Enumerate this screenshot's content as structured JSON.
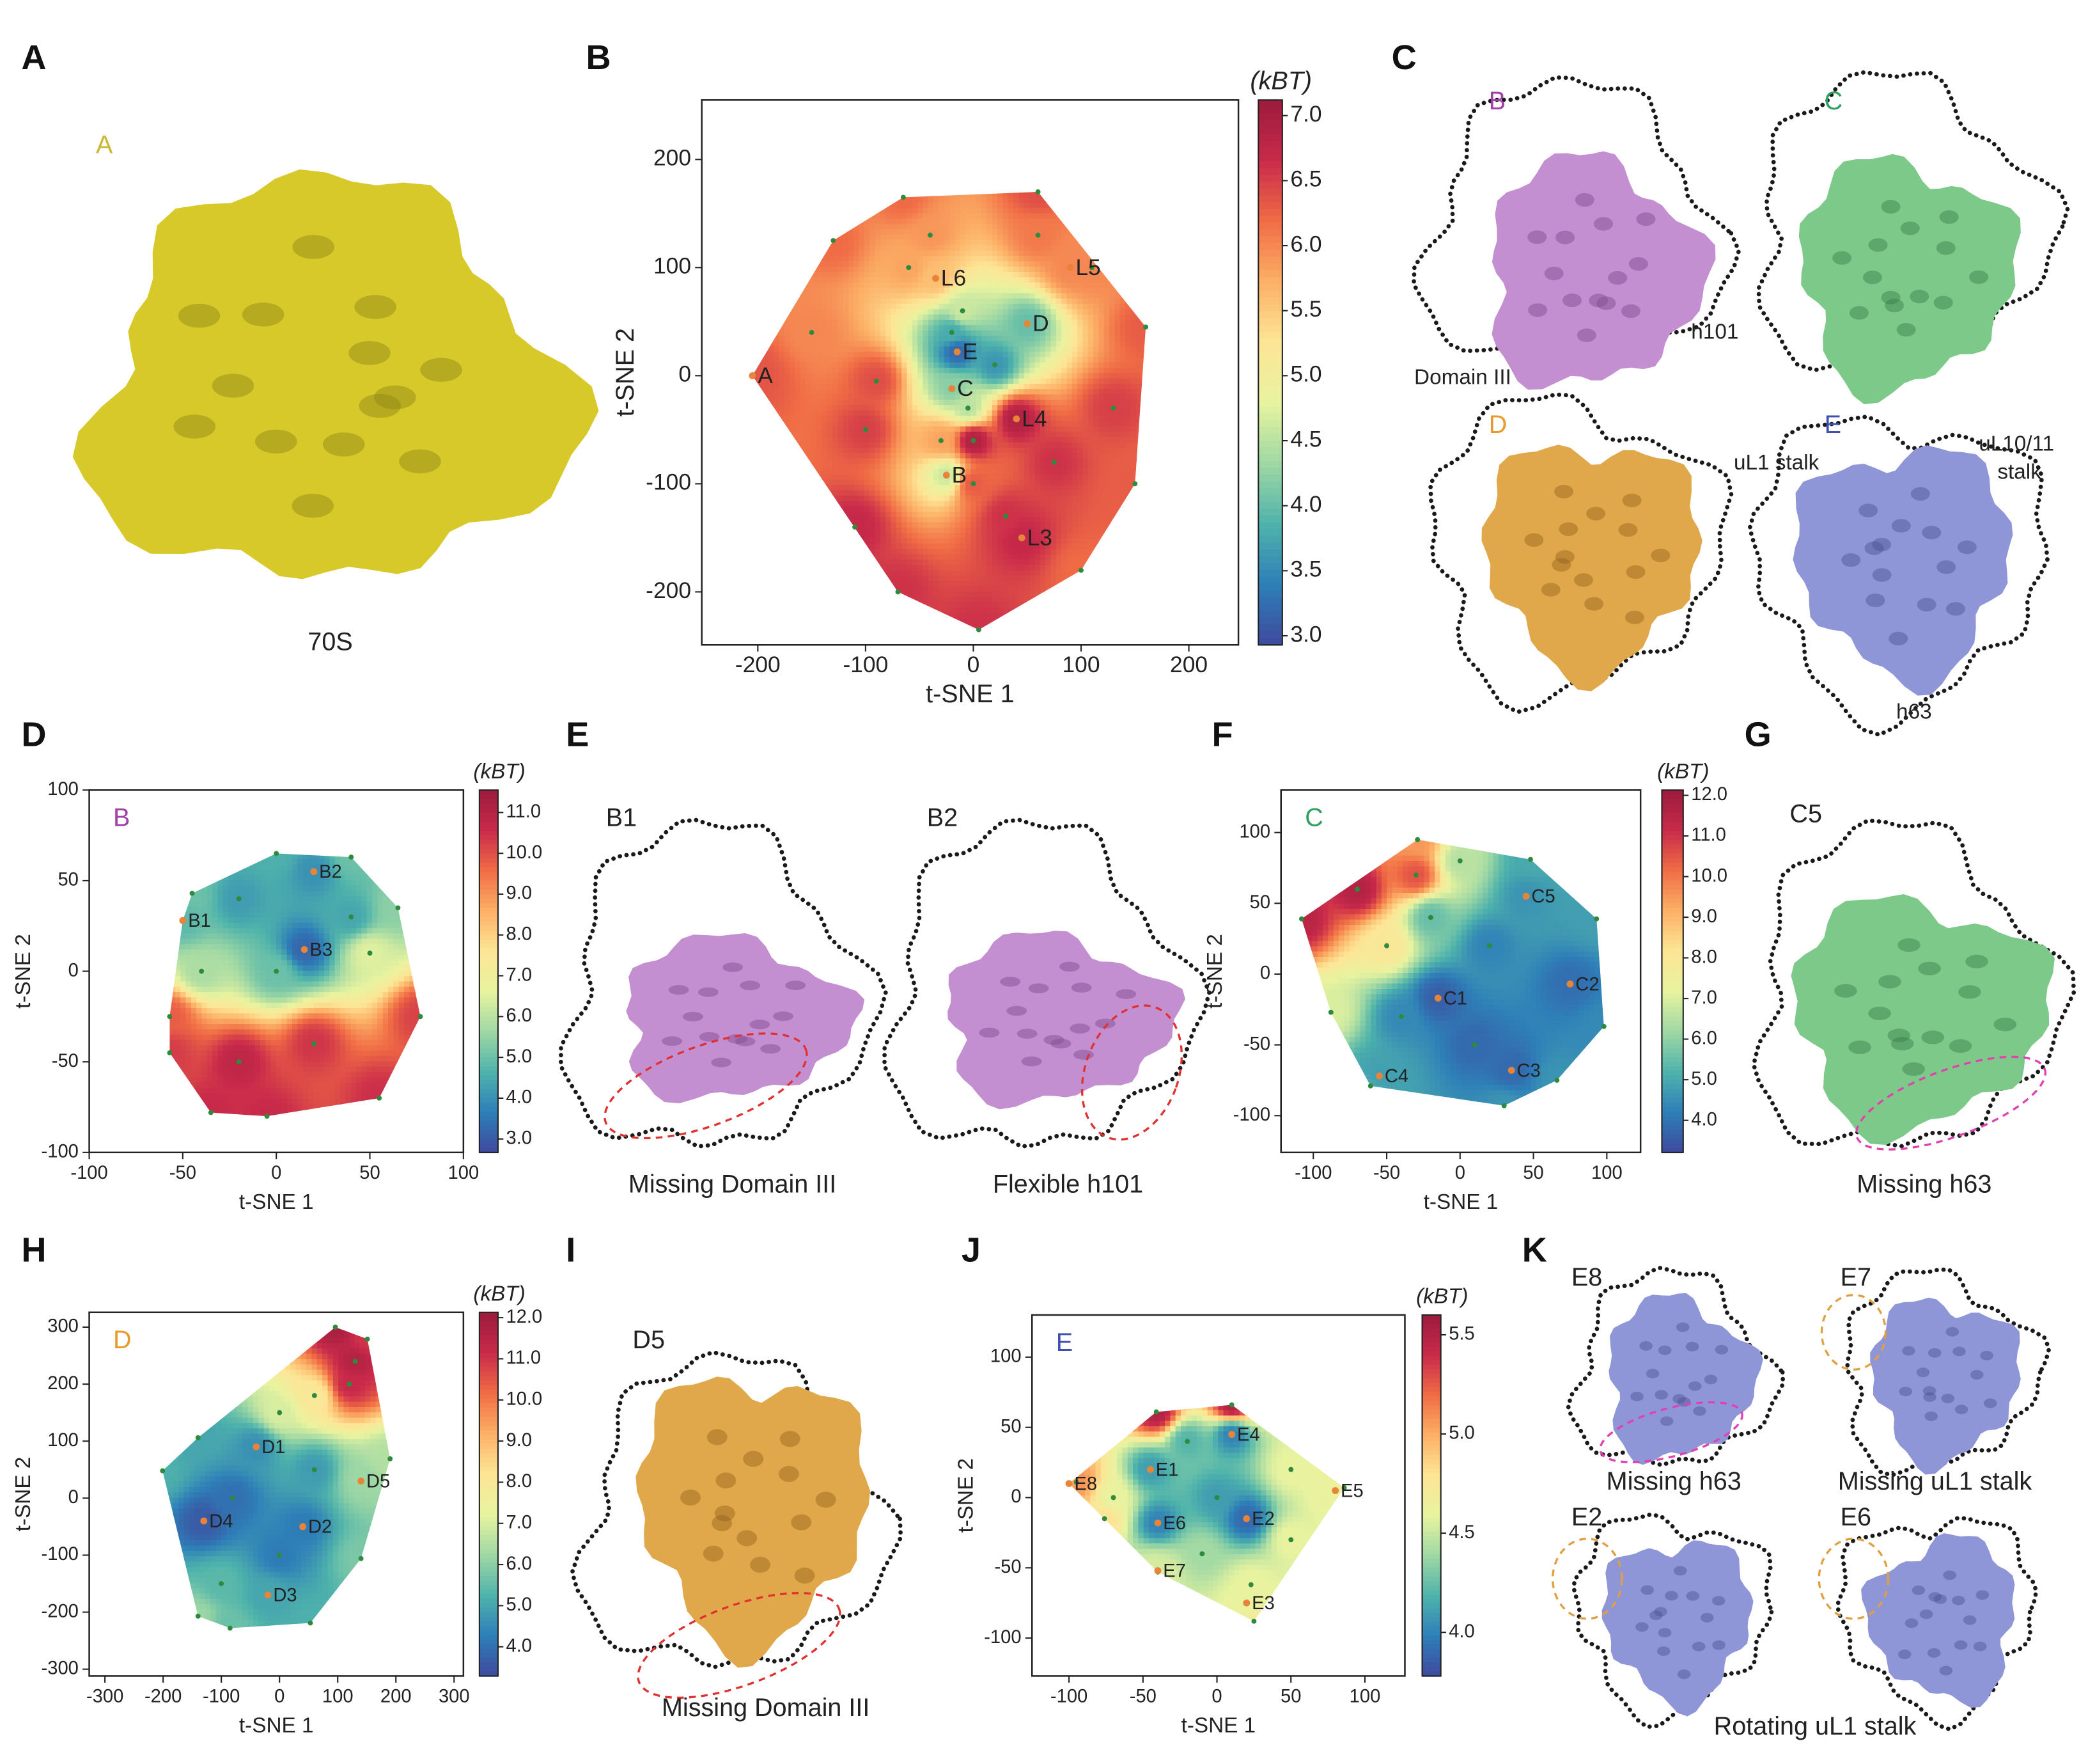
{
  "panel_labels": [
    "A",
    "B",
    "C",
    "D",
    "E",
    "F",
    "G",
    "H",
    "I",
    "J",
    "K"
  ],
  "panel_a": {
    "state": "A",
    "caption": "70S"
  },
  "panel_c": {
    "states": [
      "B",
      "C",
      "D",
      "E"
    ],
    "notes": [
      "Domain III",
      "h101",
      "uL1 stalk",
      "uL10/11",
      "stalk",
      "h63"
    ]
  },
  "panel_e": {
    "states": [
      "B1",
      "B2"
    ],
    "captions": [
      "Missing Domain III",
      "Flexible h101"
    ]
  },
  "panel_g": {
    "state": "C5",
    "caption": "Missing h63"
  },
  "panel_i": {
    "state": "D5",
    "caption": "Missing Domain III"
  },
  "panel_k": {
    "states": [
      "E8",
      "E7",
      "E2",
      "E6"
    ],
    "captions": [
      "Missing h63",
      "Missing uL1 stalk",
      "Rotating uL1 stalk"
    ]
  },
  "chart_data": [
    {
      "type": "landscape",
      "xlabel": "t-SNE 1",
      "ylabel": "t-SNE 2",
      "xlim": [
        -252,
        246
      ],
      "ylim": [
        -249,
        255
      ],
      "xticks": [
        -200,
        -100,
        0,
        100,
        200
      ],
      "yticks": [
        -200,
        -100,
        0,
        100,
        200
      ],
      "colorbar_title": "(kBT)",
      "clim": [
        2.93,
        7.12
      ],
      "cticks": [
        {
          "value": 3,
          "label": "3.0"
        },
        {
          "value": 3.5,
          "label": "3.5"
        },
        {
          "value": 4,
          "label": "4.0"
        },
        {
          "value": 4.5,
          "label": "4.5"
        },
        {
          "value": 5,
          "label": "5.0"
        },
        {
          "value": 5.5,
          "label": "5.5"
        },
        {
          "value": 6,
          "label": "6.0"
        },
        {
          "value": 6.5,
          "label": "6.5"
        },
        {
          "value": 7,
          "label": "7.0"
        }
      ],
      "colormap": [
        "#3e4a9e",
        "#2e7fb8",
        "#4fb3ab",
        "#9fd8a4",
        "#e8f39f",
        "#fde596",
        "#fcb066",
        "#f06c45",
        "#c92a4a",
        "#9b1b3c"
      ],
      "point_color": "#2e8b3e",
      "state_color": "#e8833a",
      "states": {
        "labels": [
          "A",
          "L6",
          "L5",
          "D",
          "E",
          "C",
          "L4",
          "B",
          "L3"
        ],
        "x": [
          -205,
          -35,
          90,
          50,
          -15,
          -20,
          40,
          -25,
          45
        ],
        "y": [
          0,
          90,
          100,
          48,
          22,
          -12,
          -40,
          -92,
          -150
        ],
        "energy": [
          6.4,
          5.6,
          6.0,
          4.0,
          3.2,
          4.2,
          6.9,
          4.6,
          6.7
        ]
      },
      "points": {
        "x": [
          -205,
          -130,
          -65,
          60,
          160,
          150,
          100,
          5,
          -110,
          -60,
          -40,
          -10,
          20,
          75,
          -150,
          -100,
          0,
          30,
          -70,
          110,
          -30,
          0,
          60,
          -90,
          130,
          -20,
          -5
        ],
        "y": [
          0,
          125,
          165,
          170,
          45,
          -100,
          -180,
          -235,
          -140,
          100,
          130,
          60,
          10,
          -80,
          40,
          -50,
          -100,
          -130,
          -200,
          100,
          -60,
          -60,
          130,
          -5,
          -30,
          40,
          -30
        ],
        "energy": [
          6.3,
          6.2,
          6.2,
          6.4,
          6.3,
          6.3,
          6.2,
          6.6,
          6.7,
          5.8,
          5.9,
          4.6,
          3.6,
          6.6,
          6.0,
          6.5,
          6.3,
          6.6,
          6.6,
          6.0,
          5.8,
          6.9,
          6.1,
          6.4,
          6.5,
          3.8,
          4.5
        ]
      }
    },
    {
      "type": "landscape",
      "xlabel": "t-SNE 1",
      "ylabel": "t-SNE 2",
      "inset_label": "B",
      "inset_color": "#a040a8",
      "xlim": [
        -100,
        100
      ],
      "ylim": [
        -100,
        100
      ],
      "xticks": [
        -100,
        -50,
        0,
        50,
        100
      ],
      "yticks": [
        -100,
        -50,
        0,
        50,
        100
      ],
      "colorbar_title": "(kBT)",
      "clim": [
        2.67,
        11.55
      ],
      "cticks": [
        {
          "value": 3,
          "label": "3.0"
        },
        {
          "value": 4,
          "label": "4.0"
        },
        {
          "value": 5,
          "label": "5.0"
        },
        {
          "value": 6,
          "label": "6.0"
        },
        {
          "value": 7,
          "label": "7.0"
        },
        {
          "value": 8,
          "label": "8.0"
        },
        {
          "value": 9,
          "label": "9.0"
        },
        {
          "value": 10,
          "label": "10.0"
        },
        {
          "value": 11,
          "label": "11.0"
        }
      ],
      "colormap": [
        "#3e4a9e",
        "#2e7fb8",
        "#4fb3ab",
        "#9fd8a4",
        "#e8f39f",
        "#fde596",
        "#fcb066",
        "#f06c45",
        "#c92a4a",
        "#9b1b3c"
      ],
      "point_color": "#2e8b3e",
      "state_color": "#e8833a",
      "states": {
        "labels": [
          "B1",
          "B2",
          "B3"
        ],
        "x": [
          -50,
          20,
          15
        ],
        "y": [
          28,
          55,
          12
        ],
        "energy": [
          4.8,
          4.0,
          3.2
        ]
      },
      "points": {
        "x": [
          -45,
          0,
          40,
          65,
          77,
          55,
          -5,
          -35,
          -57,
          -57,
          -20,
          40,
          -20,
          20,
          50,
          -40,
          0
        ],
        "y": [
          43,
          65,
          63,
          35,
          -25,
          -70,
          -80,
          -78,
          -45,
          -25,
          40,
          30,
          -50,
          -40,
          10,
          0,
          0
        ],
        "energy": [
          5.0,
          4.6,
          5.0,
          5.4,
          10.2,
          10.5,
          10.6,
          10.6,
          10.3,
          9.8,
          4.2,
          4.4,
          10.8,
          10.4,
          6.5,
          5.8,
          5.0
        ]
      }
    },
    {
      "type": "landscape",
      "xlabel": "t-SNE 1",
      "ylabel": "t-SNE 2",
      "inset_label": "C",
      "inset_color": "#2fa060",
      "xlim": [
        -122,
        123
      ],
      "ylim": [
        -126,
        130
      ],
      "xticks": [
        -100,
        -50,
        0,
        50,
        100
      ],
      "yticks": [
        -100,
        -50,
        0,
        50,
        100
      ],
      "colorbar_title": "(kBT)",
      "clim": [
        3.21,
        12.13
      ],
      "cticks": [
        {
          "value": 4,
          "label": "4.0"
        },
        {
          "value": 5,
          "label": "5.0"
        },
        {
          "value": 6,
          "label": "6.0"
        },
        {
          "value": 7,
          "label": "7.0"
        },
        {
          "value": 8,
          "label": "8.0"
        },
        {
          "value": 9,
          "label": "9.0"
        },
        {
          "value": 10,
          "label": "10.0"
        },
        {
          "value": 11,
          "label": "11.0"
        },
        {
          "value": 12,
          "label": "12.0"
        }
      ],
      "colormap": [
        "#3e4a9e",
        "#2e7fb8",
        "#4fb3ab",
        "#9fd8a4",
        "#e8f39f",
        "#fde596",
        "#fcb066",
        "#f06c45",
        "#c92a4a",
        "#9b1b3c"
      ],
      "point_color": "#2e8b3e",
      "state_color": "#e8833a",
      "states": {
        "labels": [
          "C5",
          "C1",
          "C2",
          "C4",
          "C3"
        ],
        "x": [
          45,
          -15,
          75,
          -55,
          35
        ],
        "y": [
          55,
          -17,
          -7,
          -72,
          -68
        ],
        "energy": [
          4.6,
          3.6,
          3.9,
          4.8,
          3.8
        ]
      },
      "points": {
        "x": [
          -108,
          -29,
          48,
          93,
          98,
          66,
          30,
          -61,
          -88,
          -70,
          -50,
          -20,
          0,
          20,
          -40,
          10,
          -30
        ],
        "y": [
          39,
          95,
          81,
          39,
          -37,
          -75,
          -93,
          -79,
          -27,
          60,
          20,
          40,
          80,
          20,
          -30,
          -50,
          70
        ],
        "energy": [
          11.5,
          9.5,
          5.0,
          4.8,
          4.4,
          4.6,
          4.6,
          5.0,
          7.0,
          11.6,
          8.0,
          5.5,
          6.5,
          4.3,
          4.4,
          3.8,
          10.5
        ]
      }
    },
    {
      "type": "landscape",
      "xlabel": "t-SNE 1",
      "ylabel": "t-SNE 2",
      "inset_label": "D",
      "inset_color": "#e89a2a",
      "xlim": [
        -327,
        316
      ],
      "ylim": [
        -312,
        326
      ],
      "xticks": [
        -300,
        -200,
        -100,
        0,
        100,
        200,
        300
      ],
      "yticks": [
        -300,
        -200,
        -100,
        0,
        100,
        200,
        300
      ],
      "colorbar_title": "(kBT)",
      "clim": [
        3.29,
        12.13
      ],
      "cticks": [
        {
          "value": 4,
          "label": "4.0"
        },
        {
          "value": 5,
          "label": "5.0"
        },
        {
          "value": 6,
          "label": "6.0"
        },
        {
          "value": 7,
          "label": "7.0"
        },
        {
          "value": 8,
          "label": "8.0"
        },
        {
          "value": 9,
          "label": "9.0"
        },
        {
          "value": 10,
          "label": "10.0"
        },
        {
          "value": 11,
          "label": "11.0"
        },
        {
          "value": 12,
          "label": "12.0"
        }
      ],
      "colormap": [
        "#3e4a9e",
        "#2e7fb8",
        "#4fb3ab",
        "#9fd8a4",
        "#e8f39f",
        "#fde596",
        "#fcb066",
        "#f06c45",
        "#c92a4a",
        "#9b1b3c"
      ],
      "point_color": "#2e8b3e",
      "state_color": "#e8833a",
      "states": {
        "labels": [
          "D1",
          "D5",
          "D4",
          "D2",
          "D3"
        ],
        "x": [
          -40,
          140,
          -130,
          40,
          -20
        ],
        "y": [
          90,
          30,
          -40,
          -50,
          -170
        ],
        "energy": [
          4.6,
          6.2,
          3.6,
          4.2,
          5.0
        ]
      },
      "points": {
        "x": [
          96,
          151,
          190,
          140,
          53,
          -85,
          -140,
          -201,
          -140,
          120,
          60,
          0,
          -80,
          60,
          0,
          -100,
          130
        ],
        "y": [
          300,
          279,
          69,
          -106,
          -219,
          -228,
          -207,
          48,
          106,
          200,
          180,
          150,
          0,
          50,
          -100,
          -150,
          240
        ],
        "energy": [
          11.8,
          11.0,
          6.5,
          5.8,
          5.2,
          5.6,
          6.2,
          5.2,
          5.0,
          11.2,
          8.0,
          7.0,
          4.0,
          4.8,
          4.2,
          5.4,
          11.6
        ]
      }
    },
    {
      "type": "landscape",
      "xlabel": "t-SNE 1",
      "ylabel": "t-SNE 2",
      "inset_label": "E",
      "inset_color": "#4050b0",
      "xlim": [
        -125,
        127
      ],
      "ylim": [
        -127,
        130
      ],
      "xticks": [
        -100,
        -50,
        0,
        50,
        100
      ],
      "yticks": [
        -100,
        -50,
        0,
        50,
        100
      ],
      "colorbar_title": "(kBT)",
      "clim": [
        3.78,
        5.6
      ],
      "cticks": [
        {
          "value": 4,
          "label": "4.0"
        },
        {
          "value": 4.5,
          "label": "4.5"
        },
        {
          "value": 5,
          "label": "5.0"
        },
        {
          "value": 5.5,
          "label": "5.5"
        }
      ],
      "colormap": [
        "#3e4a9e",
        "#2e7fb8",
        "#4fb3ab",
        "#9fd8a4",
        "#e8f39f",
        "#fde596",
        "#fcb066",
        "#f06c45",
        "#c92a4a",
        "#9b1b3c"
      ],
      "point_color": "#2e8b3e",
      "state_color": "#e8833a",
      "states": {
        "labels": [
          "E8",
          "E1",
          "E4",
          "E5",
          "E6",
          "E2",
          "E7",
          "E3"
        ],
        "x": [
          -100,
          -45,
          10,
          80,
          -40,
          20,
          -40,
          20
        ],
        "y": [
          10,
          20,
          45,
          5,
          -18,
          -15,
          -52,
          -75
        ],
        "energy": [
          5.0,
          4.1,
          4.0,
          4.6,
          4.0,
          3.9,
          4.5,
          4.6
        ]
      },
      "points": {
        "x": [
          -95,
          -41,
          10,
          86,
          23,
          25,
          -40,
          -76,
          -20,
          50,
          0,
          -70,
          50,
          -10
        ],
        "y": [
          11,
          61,
          66,
          7,
          -62,
          -88,
          -53,
          -15,
          40,
          20,
          0,
          0,
          -30,
          -40
        ],
        "energy": [
          5.1,
          5.5,
          5.5,
          4.7,
          4.6,
          4.7,
          4.6,
          4.8,
          4.2,
          4.6,
          4.1,
          4.6,
          4.6,
          4.4
        ]
      }
    }
  ]
}
